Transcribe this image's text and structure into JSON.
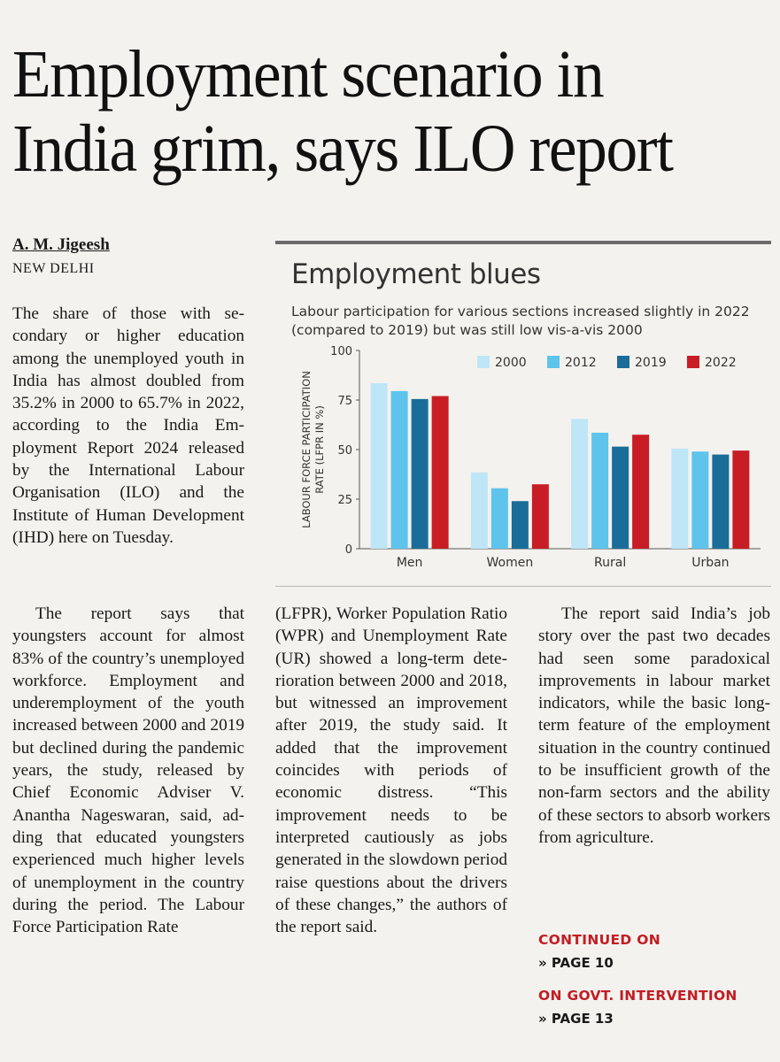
{
  "article": {
    "headline_line1": "Employment scenario in",
    "headline_line2": "India grim, says ILO report",
    "byline": "A. M. Jigeesh",
    "dateline": "NEW DELHI",
    "col1a": "The share of those with se­condary or higher educa­tion among the unem­ployed youth in India has almost doubled from 35.2% in 2000 to 65.7% in 2022, according to the India Em­ployment Report 2024 re­leased by the International Labour Organisation (ILO) and the Institute of Human Development (IHD) here on Tuesday.",
    "col1b": "The report says that youngsters account for al­most 83% of the country’s unemployed workforce. Employment and unde­remployment of the youth increased between 2000 and 2019 but declined dur­ing the pandemic years, the study, released by Chief Economic Adviser V. Anan­tha Nageswaran, said, ad­ding that educated young­sters experienced much higher levels of unemploy­ment in the country during the period. The Labour Force Participation Rate",
    "col2": "(LFPR), Worker Population Ratio (WPR) and Unem­ployment Rate (UR) showed a long-term dete­rioration between 2000 and 2018, but witnessed an improvement after 2019, the study said. It added that the improvement coincides with periods of economic distress. “This improve­ment needs to be interpret­ed cautiously as jobs gener­ated in the slowdown period raise questions about the drivers of these changes,” the authors of the report said.",
    "col3": "The report said India’s job story over the past two decades had seen some pa­radoxical improvements in labour market indicators, while the basic long-term feature of the employment situation in the country continued to be insufficient growth of the non-farm sec­tors and the ability of these sectors to absorb workers from agriculture.",
    "continued_label": "CONTINUED ON",
    "continued_page": "» PAGE 10",
    "govt_label": "ON GOVT. INTERVENTION",
    "govt_page": "» PAGE 13"
  },
  "chart_data": {
    "type": "bar",
    "title": "Employment blues",
    "subtitle": "Labour participation for various sections increased slightly in 2022 (compared to 2019) but was still low vis-a-vis 2000",
    "ylabel_line1": "LABOUR FORCE PARTICIPATION",
    "ylabel_line2": "RATE (LFPR IN %)",
    "ylim": [
      0,
      100
    ],
    "yticks": [
      "0",
      "25",
      "50",
      "75",
      "100"
    ],
    "categories": [
      "Men",
      "Women",
      "Rural",
      "Urban"
    ],
    "series": [
      {
        "name": "2000",
        "color": "#bfe6f7",
        "values": [
          83.5,
          38.5,
          65.5,
          50.5
        ]
      },
      {
        "name": "2012",
        "color": "#5ec4ec",
        "values": [
          79.5,
          30.5,
          58.5,
          49
        ]
      },
      {
        "name": "2019",
        "color": "#1a6d99",
        "values": [
          75.5,
          24,
          51.5,
          47.5
        ]
      },
      {
        "name": "2022",
        "color": "#c91d25",
        "values": [
          77,
          32.5,
          57.5,
          49.5
        ]
      }
    ],
    "legend_position": "top-right",
    "grid": false
  }
}
